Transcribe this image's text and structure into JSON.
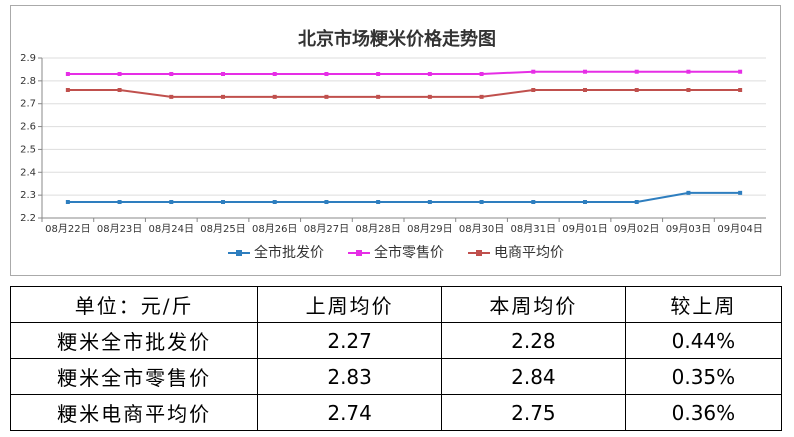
{
  "chart_data": {
    "type": "line",
    "title": "北京市场粳米价格走势图",
    "categories": [
      "08月22日",
      "08月23日",
      "08月24日",
      "08月25日",
      "08月26日",
      "08月27日",
      "08月28日",
      "08月29日",
      "08月30日",
      "08月31日",
      "09月01日",
      "09月02日",
      "09月03日",
      "09月04日"
    ],
    "series": [
      {
        "name": "全市批发价",
        "color": "#2e7ebf",
        "values": [
          2.27,
          2.27,
          2.27,
          2.27,
          2.27,
          2.27,
          2.27,
          2.27,
          2.27,
          2.27,
          2.27,
          2.27,
          2.31,
          2.31
        ]
      },
      {
        "name": "全市零售价",
        "color": "#e62ee6",
        "values": [
          2.83,
          2.83,
          2.83,
          2.83,
          2.83,
          2.83,
          2.83,
          2.83,
          2.83,
          2.84,
          2.84,
          2.84,
          2.84,
          2.84
        ]
      },
      {
        "name": "电商平均价",
        "color": "#c0504d",
        "values": [
          2.76,
          2.76,
          2.73,
          2.73,
          2.73,
          2.73,
          2.73,
          2.73,
          2.73,
          2.76,
          2.76,
          2.76,
          2.76,
          2.76
        ]
      }
    ],
    "ylim": [
      2.2,
      2.9
    ],
    "yticks": [
      2.2,
      2.3,
      2.4,
      2.5,
      2.6,
      2.7,
      2.8,
      2.9
    ],
    "grid": true,
    "legend": "bottom"
  },
  "table": {
    "header": [
      "单位：元/斤",
      "上周均价",
      "本周均价",
      "较上周"
    ],
    "rows": [
      [
        "粳米全市批发价",
        "2.27",
        "2.28",
        "0.44%"
      ],
      [
        "粳米全市零售价",
        "2.83",
        "2.84",
        "0.35%"
      ],
      [
        "粳米电商平均价",
        "2.74",
        "2.75",
        "0.36%"
      ]
    ]
  }
}
